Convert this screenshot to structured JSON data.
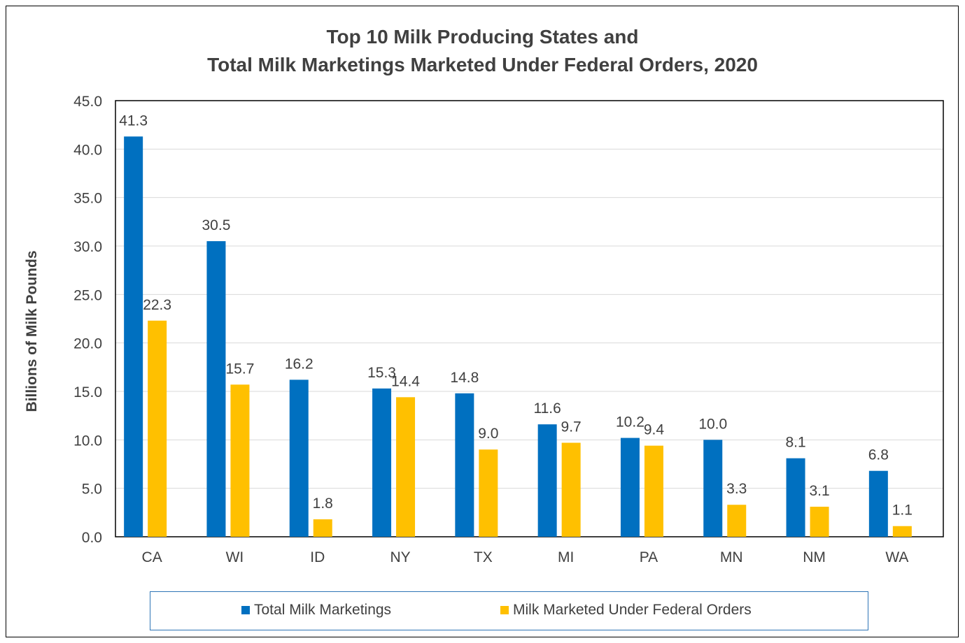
{
  "chart_data": {
    "type": "bar",
    "title_lines": [
      "Top 10 Milk Producing States and",
      "Total Milk Marketings Marketed Under Federal Orders, 2020"
    ],
    "xlabel": "",
    "ylabel": "Billions of Milk Pounds",
    "ylim": [
      0,
      45
    ],
    "ytick_step": 5,
    "ytick_labels": [
      "0.0",
      "5.0",
      "10.0",
      "15.0",
      "20.0",
      "25.0",
      "30.0",
      "35.0",
      "40.0",
      "45.0"
    ],
    "grid": true,
    "legend_position": "bottom",
    "categories": [
      "CA",
      "WI",
      "ID",
      "NY",
      "TX",
      "MI",
      "PA",
      "MN",
      "NM",
      "WA"
    ],
    "series": [
      {
        "name": "Total Milk Marketings",
        "color": "#0070c0",
        "values": [
          41.3,
          30.5,
          16.2,
          15.3,
          14.8,
          11.6,
          10.2,
          10.0,
          8.1,
          6.8
        ],
        "labels": [
          "41.3",
          "30.5",
          "16.2",
          "15.3",
          "14.8",
          "11.6",
          "10.2",
          "10.0",
          "8.1",
          "6.8"
        ]
      },
      {
        "name": "Milk Marketed Under Federal Orders",
        "color": "#ffc000",
        "values": [
          22.3,
          15.7,
          1.8,
          14.4,
          9.0,
          9.7,
          9.4,
          3.3,
          3.1,
          1.1
        ],
        "labels": [
          "22.3",
          "15.7",
          "1.8",
          "14.4",
          "9.0",
          "9.7",
          "9.4",
          "3.3",
          "3.1",
          "1.1"
        ]
      }
    ]
  }
}
